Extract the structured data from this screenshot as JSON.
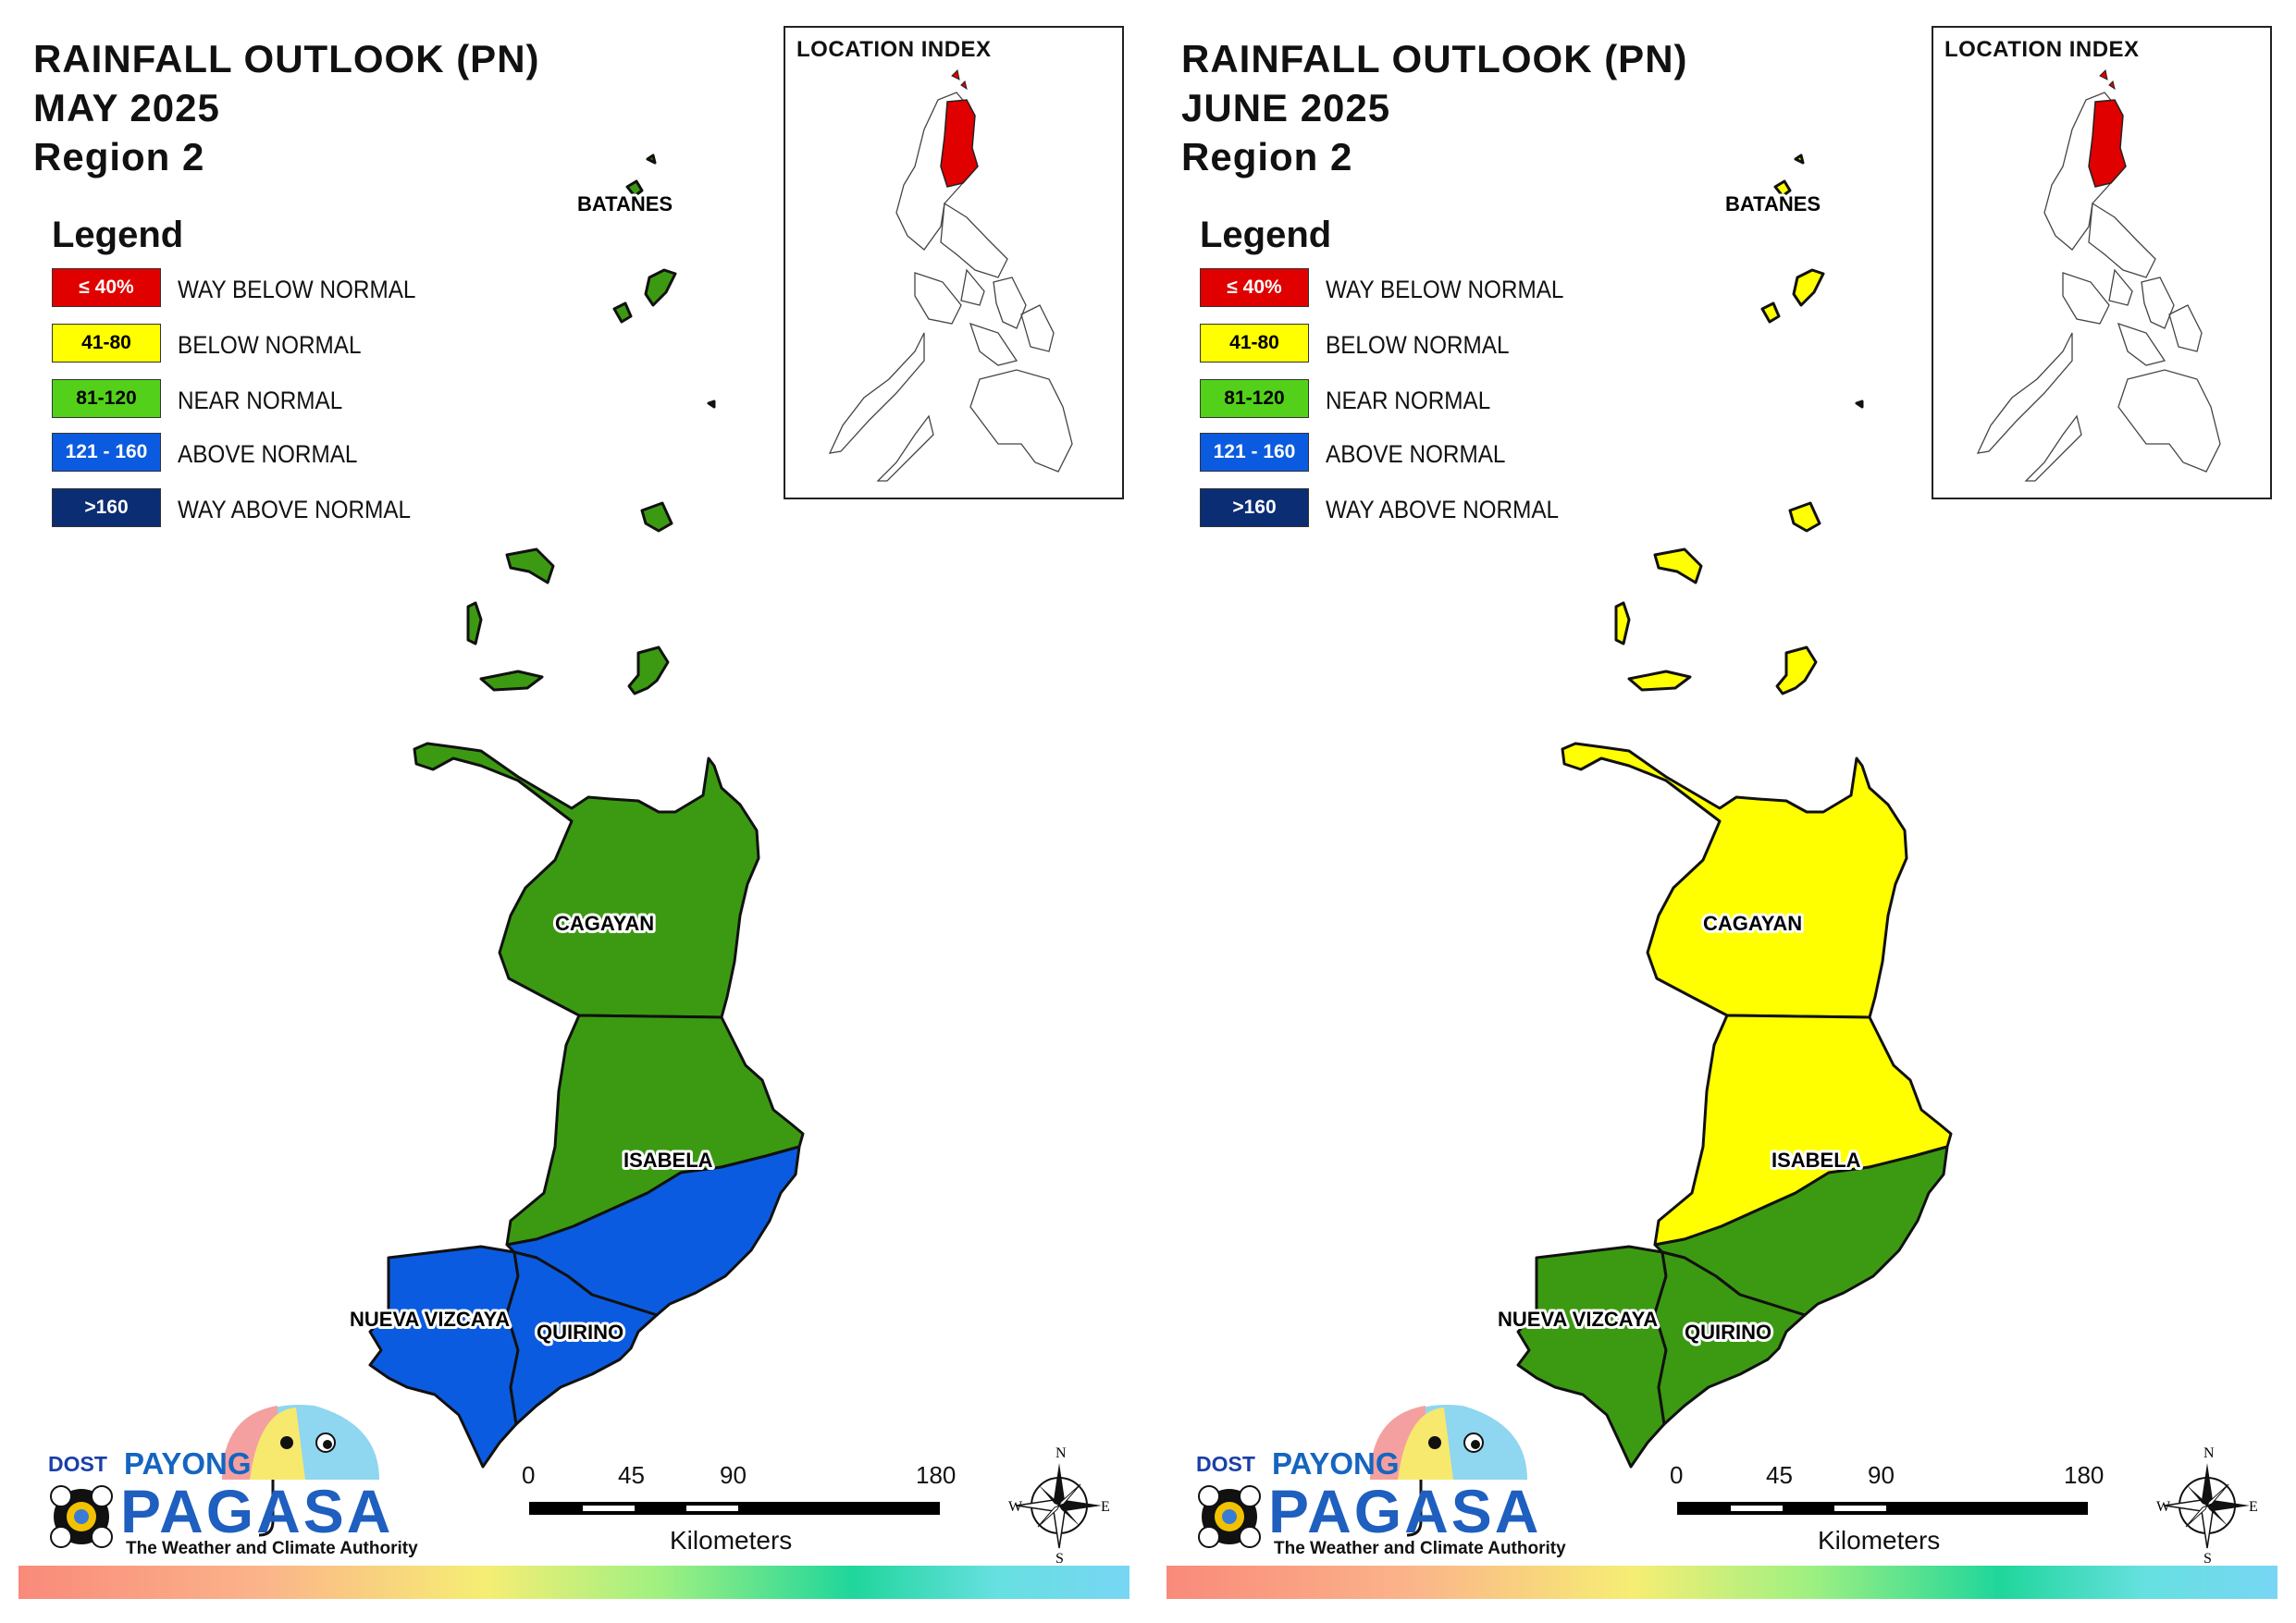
{
  "colors": {
    "way_below_normal": "#e00000",
    "below_normal": "#ffff00",
    "near_normal": "#3c9a12",
    "above_normal": "#0b5be0",
    "way_above_normal": "#0b2d73",
    "legend_near_normal_swatch": "#53d11a"
  },
  "legend": {
    "title": "Legend",
    "items": [
      {
        "range": "≤ 40%",
        "label": "WAY BELOW NORMAL",
        "color": "#e00000",
        "text_color": "#ffffff"
      },
      {
        "range": "41-80",
        "label": "BELOW NORMAL",
        "color": "#ffff00",
        "text_color": "#000000"
      },
      {
        "range": "81-120",
        "label": "NEAR NORMAL",
        "color": "#53d11a",
        "text_color": "#000000"
      },
      {
        "range": "121 - 160",
        "label": "ABOVE NORMAL",
        "color": "#0b5be0",
        "text_color": "#ffffff"
      },
      {
        "range": ">160",
        "label": "WAY ABOVE NORMAL",
        "color": "#0b2d73",
        "text_color": "#ffffff"
      }
    ]
  },
  "inset": {
    "title": "LOCATION INDEX",
    "highlight_color": "#e00000"
  },
  "scale": {
    "ticks": [
      "0",
      "45",
      "90",
      "180"
    ],
    "unit": "Kilometers"
  },
  "compass": {
    "n": "N",
    "e": "E",
    "s": "S",
    "w": "W"
  },
  "logo": {
    "dost": "DOST",
    "payong": "PAYONG",
    "pagasa": "PAGASA",
    "tagline": "The Weather and Climate Authority"
  },
  "panels": [
    {
      "title": "RAINFALL OUTLOOK (PN)",
      "month": "MAY 2025",
      "region": "Region 2",
      "provinces": {
        "batanes": {
          "label": "BATANES",
          "category": "near_normal"
        },
        "cagayan": {
          "label": "CAGAYAN",
          "category": "near_normal"
        },
        "isabela": {
          "label": "ISABELA",
          "category": "near_normal",
          "south_category": "above_normal"
        },
        "nueva_vizcaya": {
          "label": "NUEVA VIZCAYA",
          "category": "above_normal"
        },
        "quirino": {
          "label": "QUIRINO",
          "category": "above_normal"
        }
      }
    },
    {
      "title": "RAINFALL OUTLOOK (PN)",
      "month": "JUNE 2025",
      "region": "Region 2",
      "provinces": {
        "batanes": {
          "label": "BATANES",
          "category": "below_normal"
        },
        "cagayan": {
          "label": "CAGAYAN",
          "category": "below_normal"
        },
        "isabela": {
          "label": "ISABELA",
          "category": "below_normal",
          "south_category": "near_normal"
        },
        "nueva_vizcaya": {
          "label": "NUEVA VIZCAYA",
          "category": "near_normal"
        },
        "quirino": {
          "label": "QUIRINO",
          "category": "near_normal"
        }
      }
    }
  ]
}
